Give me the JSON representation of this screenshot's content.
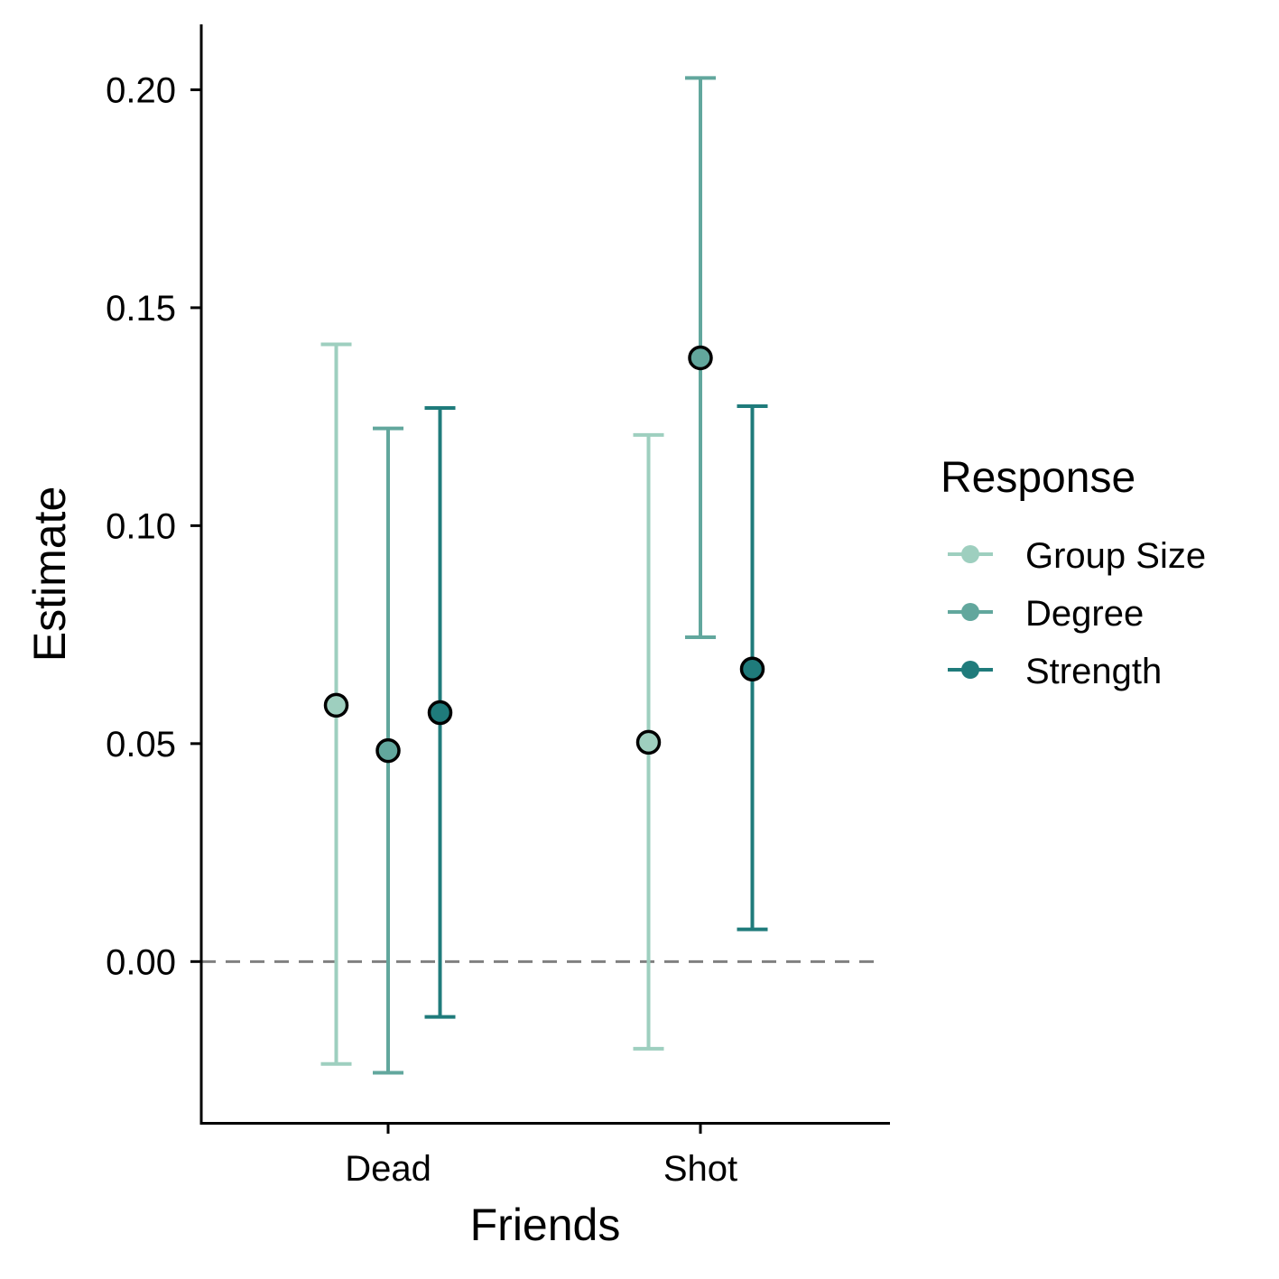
{
  "chart_data": {
    "type": "point-errorbar",
    "xlabel": "Friends",
    "ylabel": "Estimate",
    "ylim": [
      -0.037,
      0.215
    ],
    "yticks": [
      0.0,
      0.05,
      0.1,
      0.15,
      0.2
    ],
    "ytick_labels": [
      "0.00",
      "0.05",
      "0.10",
      "0.15",
      "0.20"
    ],
    "categories": [
      "Dead",
      "Shot"
    ],
    "reference_line": 0.0,
    "legend": {
      "title": "Response",
      "position": "right"
    },
    "series": [
      {
        "name": "Group Size",
        "color": "#9ecfbf",
        "estimates": [
          0.0588,
          0.0503
        ],
        "lower": [
          -0.0235,
          -0.02
        ],
        "upper": [
          0.1416,
          0.1208
        ]
      },
      {
        "name": "Degree",
        "color": "#62a79d",
        "estimates": [
          0.0484,
          0.1385
        ],
        "lower": [
          -0.0255,
          0.0744
        ],
        "upper": [
          0.1223,
          0.2027
        ]
      },
      {
        "name": "Strength",
        "color": "#1f7b7b",
        "estimates": [
          0.0571,
          0.0671
        ],
        "lower": [
          -0.0127,
          0.0074
        ],
        "upper": [
          0.127,
          0.1274
        ]
      }
    ]
  }
}
